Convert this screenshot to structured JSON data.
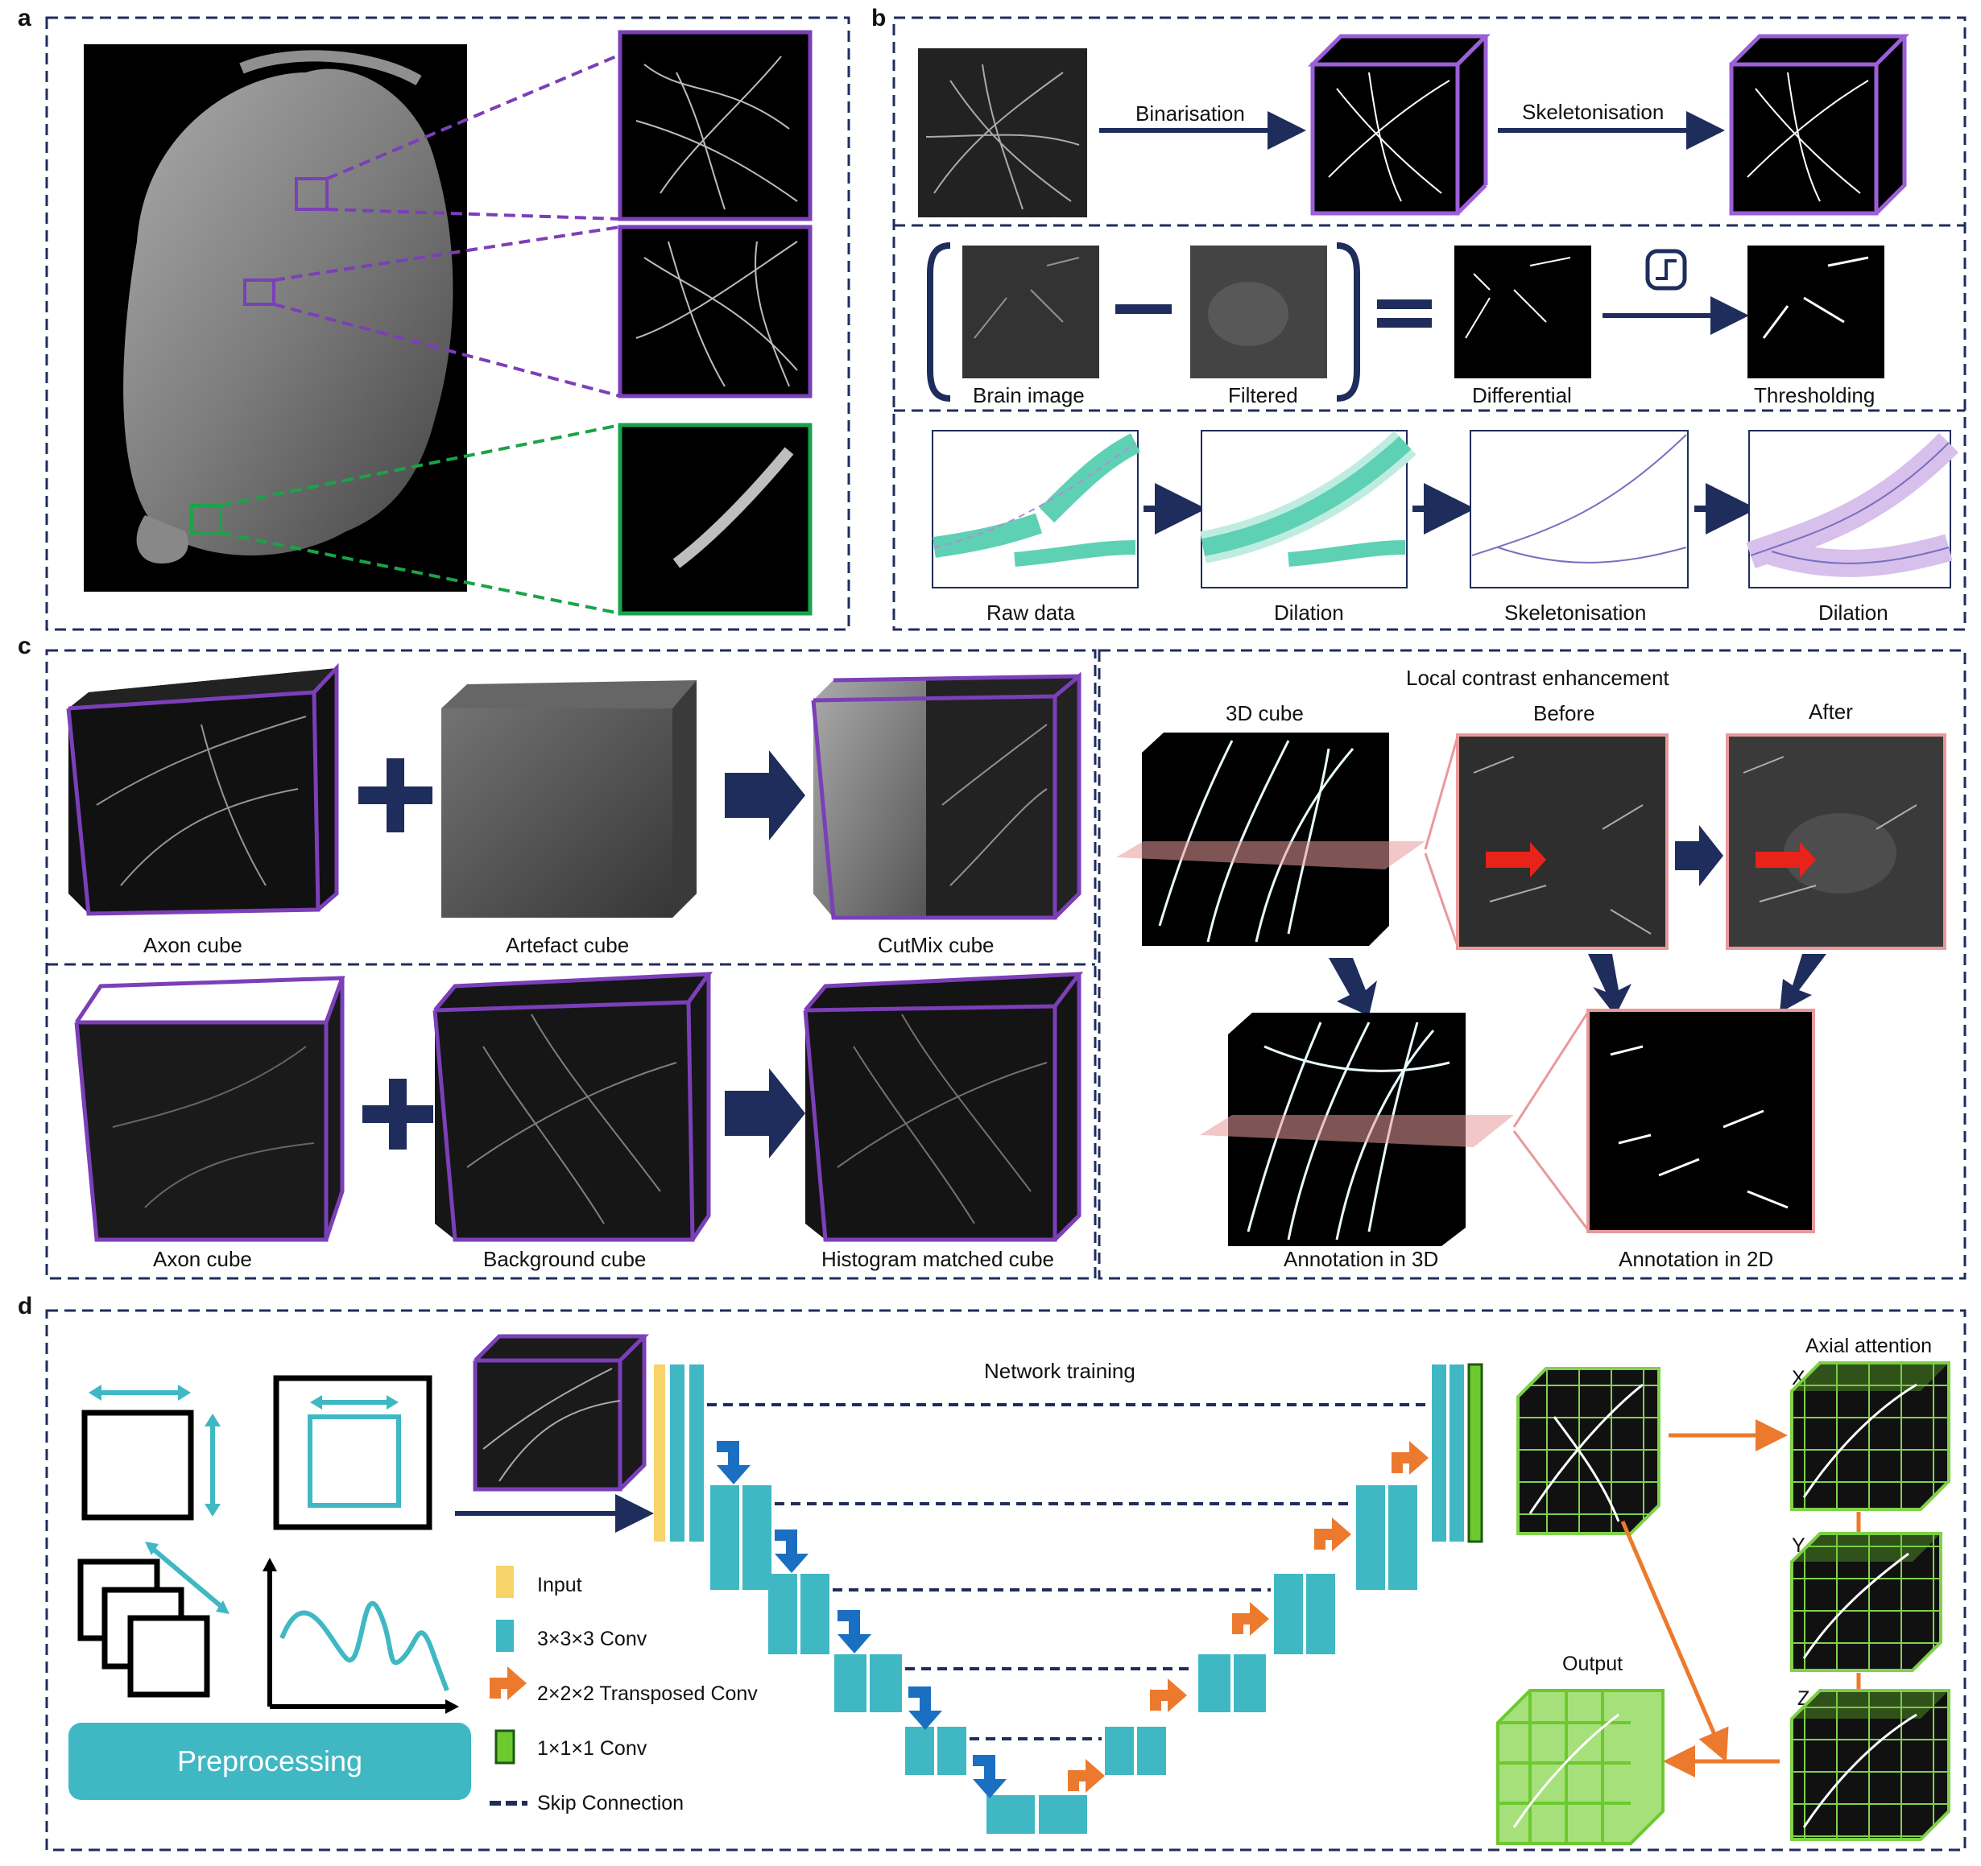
{
  "panel_letters": {
    "a": "a",
    "b": "b",
    "c": "c",
    "d": "d"
  },
  "b": {
    "row1": {
      "binarisation": "Binarisation",
      "skeletonisation": "Skeletonisation"
    },
    "row2": {
      "brain": "Brain image",
      "filtered": "Filtered",
      "differential": "Differential",
      "thresholding": "Thresholding"
    },
    "row3": {
      "raw": "Raw data",
      "dilation1": "Dilation",
      "skeleton": "Skeletonisation",
      "dilation2": "Dilation"
    }
  },
  "c": {
    "row1": {
      "axon": "Axon cube",
      "artefact": "Artefact cube",
      "cutmix": "CutMix cube"
    },
    "row2": {
      "axon": "Axon cube",
      "background": "Background cube",
      "histogram": "Histogram matched cube"
    },
    "lce": {
      "title": "Local contrast enhancement",
      "cube3d": "3D cube",
      "before": "Before",
      "after": "After",
      "annot3d": "Annotation in 3D",
      "annot2d": "Annotation in 2D"
    }
  },
  "d": {
    "preprocessing": "Preprocessing",
    "network": "Network training",
    "legend": {
      "input": "Input",
      "conv3": "3×3×3 Conv",
      "tconv": "2×2×2 Transposed Conv",
      "conv1": "1×1×1 Conv",
      "skip": "Skip Connection"
    },
    "axial": "Axial attention",
    "x": "X",
    "y": "Y",
    "z": "Z",
    "output": "Output"
  },
  "colors": {
    "navy": "#1f2d5c",
    "purple": "#7b3fb8",
    "green": "#1aa34a",
    "teal": "#3fb8c4",
    "orange": "#ec7a2e",
    "yellow": "#f7d46a",
    "lime": "#6cc92e",
    "blue": "#1b6fc2",
    "pink": "#e8999a"
  }
}
